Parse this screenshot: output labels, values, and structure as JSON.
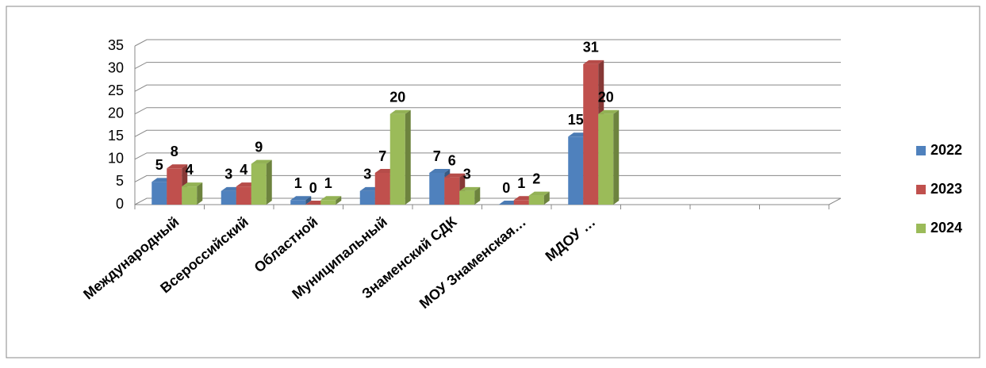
{
  "chart_data": {
    "type": "bar3d",
    "categories": [
      "Международный",
      "Всероссийский",
      "Областной",
      "Муниципальный",
      "Знаменский СДК",
      "МОУ Знаменская…",
      "МДОУ …",
      null,
      null,
      null
    ],
    "series": [
      {
        "name": "2022",
        "color": "#4f81bd",
        "values": [
          5,
          3,
          1,
          3,
          7,
          0,
          15,
          null,
          null,
          null
        ]
      },
      {
        "name": "2023",
        "color": "#c0504d",
        "values": [
          8,
          4,
          0,
          7,
          6,
          1,
          31,
          null,
          null,
          null
        ]
      },
      {
        "name": "2024",
        "color": "#9bbb59",
        "values": [
          4,
          9,
          1,
          20,
          3,
          2,
          20,
          null,
          null,
          null
        ]
      }
    ],
    "ylim": [
      0,
      35
    ],
    "yticks": [
      0,
      5,
      10,
      15,
      20,
      25,
      30,
      35
    ],
    "grid": true,
    "legend": "right"
  }
}
